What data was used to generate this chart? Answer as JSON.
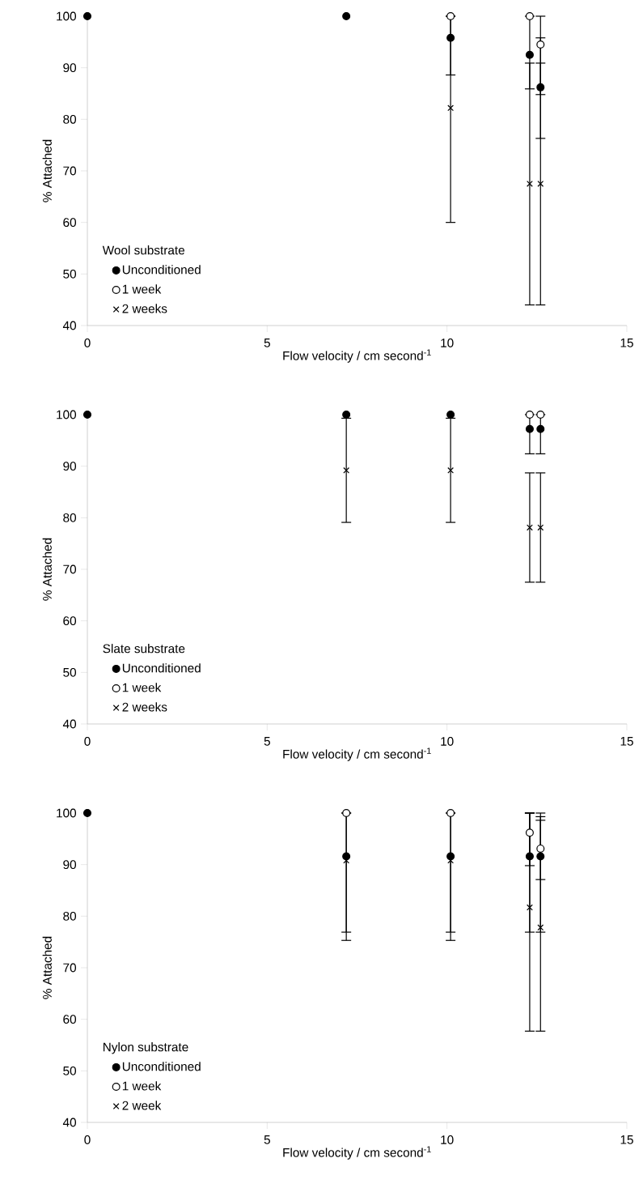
{
  "chart_data": [
    {
      "type": "scatter",
      "x": [
        0,
        7.2,
        10.1,
        12.3,
        12.6
      ],
      "xlabel": "Flow velocity / cm second$^{-1}$",
      "ylabel": "% Attached",
      "legend_title": "Wool substrate",
      "legend": "bottom left",
      "xlim": [
        0,
        15
      ],
      "ylim": [
        40,
        100
      ],
      "xticks": [
        0,
        5,
        10,
        15
      ],
      "yticks": [
        40,
        50,
        60,
        70,
        80,
        90,
        100
      ],
      "series": [
        {
          "name": "Unconditioned",
          "color": "#000000",
          "marker": "circle",
          "values": [
            100,
            100,
            95.8,
            92.5,
            86.2
          ],
          "errors": [
            null,
            null,
            [
              88.6,
              100
            ],
            [
              85.9,
              100
            ],
            [
              76.3,
              95.8
            ]
          ]
        },
        {
          "name": "1 week",
          "color": "#ffffff",
          "marker": "circle",
          "values": [
            null,
            null,
            100,
            100,
            94.5
          ],
          "errors": [
            null,
            null,
            null,
            null,
            [
              84.8,
              100
            ]
          ]
        },
        {
          "name": "2 weeks",
          "color": "#000000",
          "marker": "cross",
          "values": [
            null,
            null,
            82.2,
            67.5,
            67.5
          ],
          "errors": [
            null,
            null,
            [
              60,
              100
            ],
            [
              44,
              90.9
            ],
            [
              44,
              90.9
            ]
          ]
        }
      ]
    },
    {
      "type": "scatter",
      "x": [
        0,
        7.2,
        10.1,
        12.3,
        12.6
      ],
      "xlabel": "Flow velocity / cm second$^{-1}$",
      "ylabel": "% Attached",
      "legend_title": "Slate substrate",
      "legend": "bottom left",
      "xlim": [
        0,
        15
      ],
      "ylim": [
        40,
        100
      ],
      "xticks": [
        0,
        5,
        10,
        15
      ],
      "yticks": [
        40,
        50,
        60,
        70,
        80,
        90,
        100
      ],
      "series": [
        {
          "name": "Unconditioned",
          "color": "#000000",
          "marker": "circle",
          "values": [
            100,
            100,
            100,
            97.2,
            97.2
          ],
          "errors": [
            null,
            null,
            null,
            [
              92.4,
              100
            ],
            [
              92.4,
              100
            ]
          ]
        },
        {
          "name": "1 week",
          "color": "#ffffff",
          "marker": "circle",
          "values": [
            null,
            null,
            null,
            100,
            100
          ]
        },
        {
          "name": "2 weeks",
          "color": "#000000",
          "marker": "cross",
          "values": [
            null,
            89.2,
            89.2,
            78.1,
            78.1
          ],
          "errors": [
            null,
            10.1,
            10.1,
            10.6,
            10.6
          ]
        }
      ]
    },
    {
      "type": "scatter",
      "x": [
        0,
        7.2,
        10.1,
        12.3,
        12.6
      ],
      "xlabel": "Flow velocity / cm second$^{-1}$",
      "ylabel": "% Attached",
      "legend_title": "Nylon substrate",
      "legend": "bottom left",
      "xlim": [
        0,
        15
      ],
      "ylim": [
        40,
        100
      ],
      "xticks": [
        0,
        5,
        10,
        15
      ],
      "yticks": [
        40,
        50,
        60,
        70,
        80,
        90,
        100
      ],
      "series": [
        {
          "name": "Unconditioned",
          "color": "#000000",
          "marker": "circle",
          "values": [
            100,
            91.6,
            91.6,
            91.6,
            91.6
          ],
          "errors": [
            null,
            [
              75.3,
              100
            ],
            [
              75.3,
              100
            ],
            [
              76.9,
              100
            ],
            [
              76.9,
              100
            ]
          ]
        },
        {
          "name": "1 week",
          "color": "#ffffff",
          "marker": "circle",
          "values": [
            null,
            100,
            100,
            96.2,
            93.1
          ],
          "errors": [
            null,
            null,
            null,
            [
              89.8,
              100
            ],
            [
              87.1,
              99.3
            ]
          ]
        },
        {
          "name": "2 week",
          "color": "#000000",
          "marker": "cross",
          "values": [
            null,
            90.8,
            90.8,
            81.7,
            77.8
          ],
          "errors": [
            null,
            [
              76.9,
              100
            ],
            [
              76.9,
              100
            ],
            [
              57.7,
              100
            ],
            [
              57.7,
              98.6
            ]
          ]
        }
      ]
    }
  ]
}
